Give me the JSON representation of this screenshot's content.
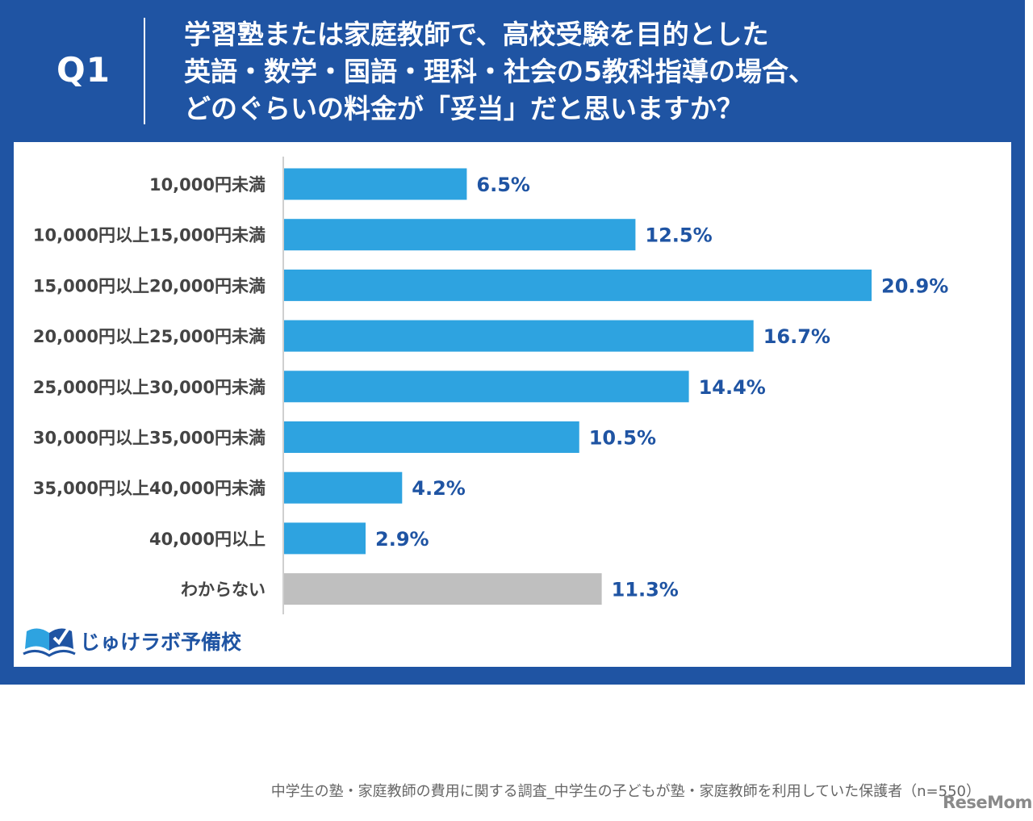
{
  "question": {
    "label": "Q1",
    "title_lines": [
      "学習塾または家庭教師で、高校受験を目的とした",
      "英語・数学・国語・理科・社会の5教科指導の場合、",
      "どのぐらいの料金が「妥当」だと思いますか？"
    ]
  },
  "chart_data": {
    "type": "bar",
    "orientation": "horizontal",
    "categories": [
      "10,000円未満",
      "10,000円以上15,000円未満",
      "15,000円以上20,000円未満",
      "20,000円以上25,000円未満",
      "25,000円以上30,000円未満",
      "30,000円以上35,000円未満",
      "35,000円以上40,000円未満",
      "40,000円以上",
      "わからない"
    ],
    "values": [
      6.5,
      12.5,
      20.9,
      16.7,
      14.4,
      10.5,
      4.2,
      2.9,
      11.3
    ],
    "value_labels": [
      "6.5%",
      "12.5%",
      "20.9%",
      "16.7%",
      "14.4%",
      "10.5%",
      "4.2%",
      "2.9%",
      "11.3%"
    ],
    "unit": "%",
    "bar_colors": [
      "#2ea3e0",
      "#2ea3e0",
      "#2ea3e0",
      "#2ea3e0",
      "#2ea3e0",
      "#2ea3e0",
      "#2ea3e0",
      "#2ea3e0",
      "#bfbfbf"
    ],
    "label_color": "#1f54a3",
    "xlim": [
      0,
      20.9
    ],
    "grid": false,
    "legend": "none"
  },
  "footer": {
    "logo_text": "じゅけラボ予備校",
    "source": "中学生の塾・家庭教師の費用に関する調査_中学生の子どもが塾・家庭教師を利用していた保護者（n=550）"
  },
  "watermark": "ReseMom",
  "colors": {
    "header_bg": "#1f54a3",
    "bar": "#2ea3e0",
    "bar_unknown": "#bfbfbf",
    "value_text": "#1f54a3"
  }
}
